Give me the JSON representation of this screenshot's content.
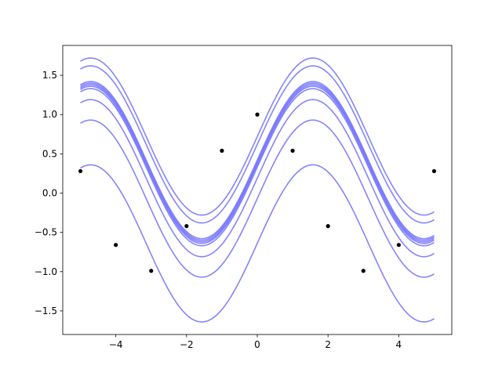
{
  "chart_data": {
    "type": "line",
    "title": "",
    "xlabel": "",
    "ylabel": "",
    "xlim": [
      -5.5,
      5.5
    ],
    "ylim": [
      -1.8,
      1.88
    ],
    "x_ticks": [
      -4,
      -2,
      0,
      2,
      4
    ],
    "y_ticks": [
      -1.5,
      -1.0,
      -0.5,
      0.0,
      0.5,
      1.0,
      1.5
    ],
    "x_tick_labels": [
      "−4",
      "−2",
      "0",
      "2",
      "4"
    ],
    "y_tick_labels": [
      "−1.5",
      "−1.0",
      "−0.5",
      "0.0",
      "0.5",
      "1.0",
      "1.5"
    ],
    "grid": false,
    "legend": "none",
    "line_color": "#7777ff",
    "line_opacity": 0.9,
    "point_color": "#000000",
    "curve_x_range": [
      -5,
      5
    ],
    "curve_function": "sin(x) + offset",
    "series": [
      {
        "offset": 0.72
      },
      {
        "offset": 0.62
      },
      {
        "offset": 0.42
      },
      {
        "offset": 0.4
      },
      {
        "offset": 0.38
      },
      {
        "offset": 0.36
      },
      {
        "offset": 0.33
      },
      {
        "offset": 0.19
      },
      {
        "offset": -0.07
      },
      {
        "offset": -0.64
      }
    ],
    "points": [
      {
        "x": -5,
        "y": 0.28
      },
      {
        "x": -4,
        "y": -0.66
      },
      {
        "x": -3,
        "y": -0.99
      },
      {
        "x": -2,
        "y": -0.42
      },
      {
        "x": -1,
        "y": 0.54
      },
      {
        "x": 0,
        "y": 1.0
      },
      {
        "x": 1,
        "y": 0.54
      },
      {
        "x": 2,
        "y": -0.42
      },
      {
        "x": 3,
        "y": -0.99
      },
      {
        "x": 4,
        "y": -0.66
      },
      {
        "x": 5,
        "y": 0.28
      }
    ]
  }
}
